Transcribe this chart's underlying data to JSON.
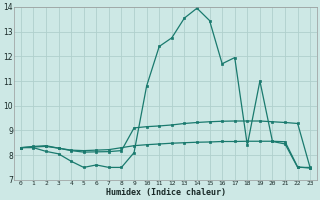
{
  "xlabel": "Humidex (Indice chaleur)",
  "bg_color": "#cde8e5",
  "grid_color": "#b0d0cc",
  "line_color": "#1a7a6e",
  "x": [
    0,
    1,
    2,
    3,
    4,
    5,
    6,
    7,
    8,
    9,
    10,
    11,
    12,
    13,
    14,
    15,
    16,
    17,
    18,
    19,
    20,
    21,
    22,
    23
  ],
  "line1": [
    8.3,
    8.3,
    8.15,
    8.05,
    7.75,
    7.5,
    7.6,
    7.5,
    7.5,
    8.1,
    10.8,
    12.4,
    12.75,
    13.55,
    13.95,
    13.45,
    11.7,
    11.95,
    8.4,
    11.0,
    8.55,
    8.45,
    7.5,
    7.5
  ],
  "line2": [
    8.3,
    8.35,
    8.38,
    8.28,
    8.2,
    8.18,
    8.2,
    8.22,
    8.3,
    8.38,
    8.42,
    8.45,
    8.48,
    8.5,
    8.52,
    8.53,
    8.55,
    8.55,
    8.56,
    8.56,
    8.56,
    8.54,
    7.52,
    7.47
  ],
  "line3": [
    8.3,
    8.33,
    8.35,
    8.28,
    8.18,
    8.12,
    8.13,
    8.14,
    8.18,
    9.1,
    9.15,
    9.18,
    9.22,
    9.28,
    9.32,
    9.35,
    9.37,
    9.38,
    9.38,
    9.38,
    9.35,
    9.32,
    9.28,
    7.47
  ],
  "ylim": [
    7,
    14
  ],
  "xlim": [
    -0.5,
    23.5
  ],
  "yticks": [
    7,
    8,
    9,
    10,
    11,
    12,
    13,
    14
  ],
  "xticks": [
    0,
    1,
    2,
    3,
    4,
    5,
    6,
    7,
    8,
    9,
    10,
    11,
    12,
    13,
    14,
    15,
    16,
    17,
    18,
    19,
    20,
    21,
    22,
    23
  ]
}
